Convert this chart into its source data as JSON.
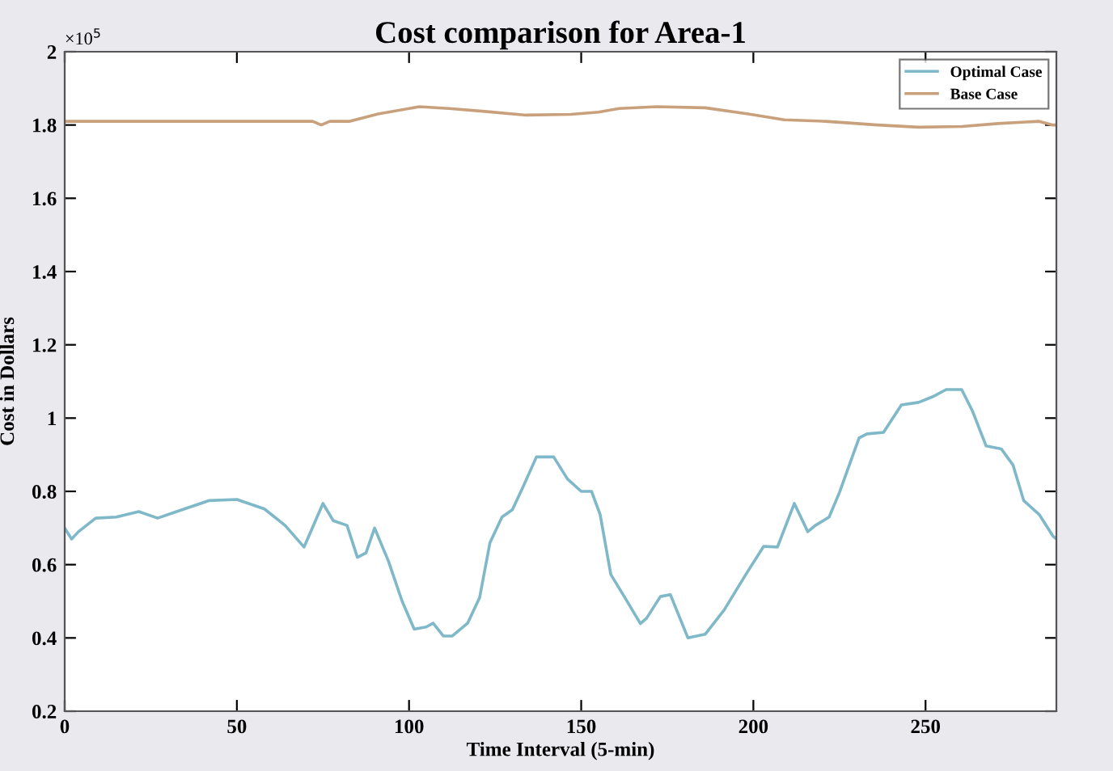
{
  "chart_data": {
    "type": "line",
    "title": "Cost comparison for Area-1",
    "xlabel": "Time Interval (5-min)",
    "ylabel": "Cost in Dollars",
    "annotations": [
      "×10$^{5}$"
    ],
    "xlim": [
      0,
      288
    ],
    "xticks": [
      0,
      50,
      100,
      150,
      200,
      250
    ],
    "ylim": [
      0.2,
      2
    ],
    "yticks": [
      0.2,
      0.4,
      0.6,
      0.8,
      1,
      1.2,
      1.4,
      1.6,
      1.8,
      2
    ],
    "grid": false,
    "legend": "top right",
    "marker": "none",
    "line_style": "solid",
    "series": [
      {
        "name": "Optimal Case",
        "color": "#7fb8c8",
        "x": [
          0,
          2,
          4,
          9,
          15,
          21.5,
          27,
          32.5,
          42,
          50,
          58,
          64,
          69.5,
          75,
          78,
          82,
          85,
          87.5,
          90,
          94,
          98,
          101.5,
          105,
          107,
          110,
          112.5,
          117,
          120.5,
          123.5,
          127,
          130,
          133,
          137,
          142,
          146,
          150,
          153,
          155.5,
          158.6,
          162.5,
          167.2,
          169,
          173,
          175.9,
          181,
          186,
          191.5,
          197.8,
          203,
          207,
          211.9,
          215.8,
          218,
          222,
          225,
          230.7,
          233,
          237.8,
          243,
          248,
          252,
          256,
          260.5,
          263.6,
          267.6,
          272,
          275.4,
          278.5,
          283,
          287,
          288
        ],
        "values": [
          0.7,
          0.67,
          0.69,
          0.727,
          0.73,
          0.745,
          0.727,
          0.745,
          0.775,
          0.778,
          0.752,
          0.707,
          0.648,
          0.767,
          0.72,
          0.707,
          0.62,
          0.632,
          0.7,
          0.61,
          0.5,
          0.424,
          0.43,
          0.44,
          0.405,
          0.405,
          0.44,
          0.51,
          0.66,
          0.73,
          0.75,
          0.81,
          0.894,
          0.894,
          0.834,
          0.8,
          0.8,
          0.737,
          0.573,
          0.513,
          0.439,
          0.454,
          0.513,
          0.518,
          0.4,
          0.41,
          0.476,
          0.573,
          0.65,
          0.648,
          0.767,
          0.69,
          0.707,
          0.73,
          0.797,
          0.946,
          0.957,
          0.961,
          1.036,
          1.043,
          1.058,
          1.078,
          1.078,
          1.02,
          0.924,
          0.916,
          0.872,
          0.775,
          0.737,
          0.678,
          0.67
        ]
      },
      {
        "name": "Base Case",
        "color": "#c9a07c",
        "x": [
          0,
          72,
          74.5,
          77,
          82.6,
          91,
          103,
          111.6,
          122,
          134,
          147,
          155,
          161,
          172,
          186,
          198.5,
          209,
          221,
          236,
          248,
          260.6,
          271,
          283,
          287,
          288
        ],
        "values": [
          1.81,
          1.81,
          1.8,
          1.81,
          1.81,
          1.83,
          1.85,
          1.845,
          1.837,
          1.827,
          1.829,
          1.835,
          1.845,
          1.85,
          1.847,
          1.83,
          1.814,
          1.81,
          1.8,
          1.794,
          1.796,
          1.804,
          1.81,
          1.8,
          1.8
        ]
      }
    ]
  }
}
